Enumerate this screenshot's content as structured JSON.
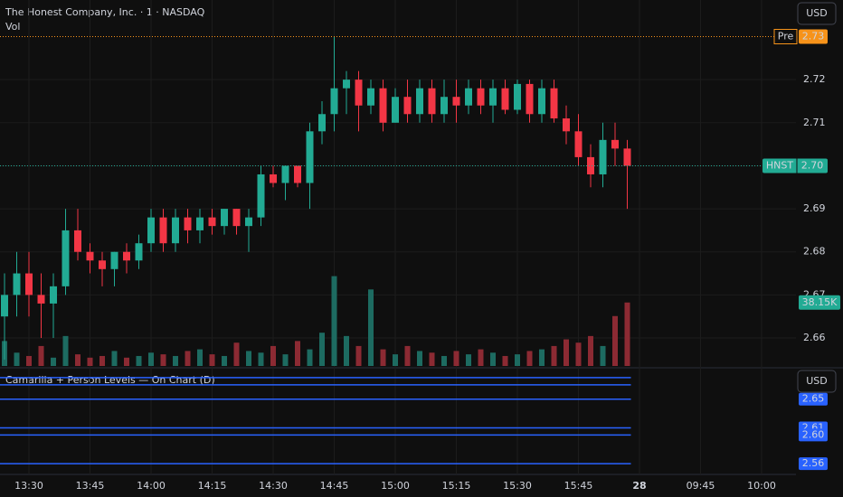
{
  "chart_data": {
    "type": "candlestick",
    "title": "The Honest Company, Inc. · 1 · NASDAQ",
    "volume_title": "Vol",
    "currency": "USD",
    "up_color": "#22ab94",
    "down_color": "#f23645",
    "volume_up_color": "#1d6b61",
    "volume_down_color": "#8c2a33",
    "ylim": [
      2.6535,
      2.7385
    ],
    "yticks": [
      2.66,
      2.67,
      2.68,
      2.69,
      {
        "value": 2.7,
        "label": "2.70"
      },
      2.71,
      2.72
    ],
    "vlim": [
      0,
      220000
    ],
    "xticks": [
      "13:30",
      "13:45",
      "14:00",
      "14:15",
      "14:30",
      "14:45",
      "15:00",
      "15:15",
      "15:30",
      "15:45",
      "28",
      "09:45",
      "10:00"
    ],
    "open": [
      2.665,
      2.67,
      2.675,
      2.67,
      2.668,
      2.672,
      2.685,
      2.68,
      2.678,
      2.676,
      2.68,
      2.678,
      2.682,
      2.688,
      2.682,
      2.688,
      2.685,
      2.688,
      2.686,
      2.69,
      2.686,
      2.688,
      2.698,
      2.696,
      2.7,
      2.696,
      2.708,
      2.712,
      2.718,
      2.72,
      2.714,
      2.718,
      2.71,
      2.716,
      2.712,
      2.718,
      2.712,
      2.716,
      2.714,
      2.718,
      2.714,
      2.718,
      2.713,
      2.719,
      2.712,
      2.718,
      2.711,
      2.708,
      2.702,
      2.698,
      2.706,
      2.704
    ],
    "high": [
      2.675,
      2.68,
      2.68,
      2.675,
      2.675,
      2.69,
      2.69,
      2.682,
      2.68,
      2.68,
      2.682,
      2.684,
      2.69,
      2.69,
      2.69,
      2.69,
      2.69,
      2.69,
      2.69,
      2.69,
      2.69,
      2.7,
      2.7,
      2.7,
      2.7,
      2.71,
      2.715,
      2.73,
      2.722,
      2.722,
      2.72,
      2.72,
      2.718,
      2.72,
      2.72,
      2.72,
      2.72,
      2.72,
      2.72,
      2.72,
      2.72,
      2.72,
      2.72,
      2.72,
      2.72,
      2.72,
      2.714,
      2.712,
      2.705,
      2.71,
      2.71,
      2.706
    ],
    "low": [
      2.655,
      2.665,
      2.665,
      2.66,
      2.66,
      2.67,
      2.678,
      2.675,
      2.672,
      2.672,
      2.675,
      2.676,
      2.68,
      2.68,
      2.68,
      2.682,
      2.682,
      2.684,
      2.684,
      2.684,
      2.68,
      2.686,
      2.695,
      2.692,
      2.695,
      2.69,
      2.705,
      2.708,
      2.712,
      2.708,
      2.712,
      2.708,
      2.71,
      2.71,
      2.71,
      2.71,
      2.71,
      2.71,
      2.712,
      2.712,
      2.71,
      2.712,
      2.712,
      2.71,
      2.71,
      2.71,
      2.705,
      2.7,
      2.695,
      2.695,
      2.7,
      2.69
    ],
    "close": [
      2.67,
      2.675,
      2.67,
      2.668,
      2.672,
      2.685,
      2.68,
      2.678,
      2.676,
      2.68,
      2.678,
      2.682,
      2.688,
      2.682,
      2.688,
      2.685,
      2.688,
      2.686,
      2.69,
      2.686,
      2.688,
      2.698,
      2.696,
      2.7,
      2.696,
      2.708,
      2.712,
      2.718,
      2.72,
      2.714,
      2.718,
      2.71,
      2.716,
      2.712,
      2.718,
      2.712,
      2.716,
      2.714,
      2.718,
      2.714,
      2.718,
      2.713,
      2.719,
      2.712,
      2.718,
      2.711,
      2.708,
      2.702,
      2.698,
      2.706,
      2.704,
      2.7
    ],
    "volume": [
      15000,
      8000,
      6000,
      12000,
      5000,
      18000,
      7000,
      5000,
      6000,
      9000,
      5000,
      6000,
      8000,
      7000,
      6000,
      9000,
      10000,
      7000,
      6000,
      14000,
      9000,
      8000,
      12000,
      7000,
      15000,
      10000,
      20000,
      54000,
      18000,
      12000,
      46000,
      10000,
      7000,
      12000,
      9000,
      8000,
      6000,
      9000,
      7000,
      10000,
      8000,
      6000,
      7000,
      9000,
      10000,
      12000,
      16000,
      14000,
      18000,
      12000,
      30000,
      38150
    ],
    "volume_last_label": "38.15K",
    "premarket": {
      "tag": "Pre",
      "value": 2.73,
      "label": "2.73",
      "color": "#f7931a"
    },
    "last_price": {
      "tag": "HNST",
      "value": 2.7,
      "label": "2.70"
    },
    "indicator": {
      "title": "Camarilla + Person Levels — On Chart (D)",
      "currency": "USD",
      "color": "#2962ff",
      "ylim": [
        2.545,
        2.69
      ],
      "levels": [
        2.65,
        2.61,
        {
          "value": 2.6,
          "label": "2.60"
        },
        2.56
      ],
      "unlabeled_levels": [
        2.68,
        2.67
      ]
    }
  }
}
